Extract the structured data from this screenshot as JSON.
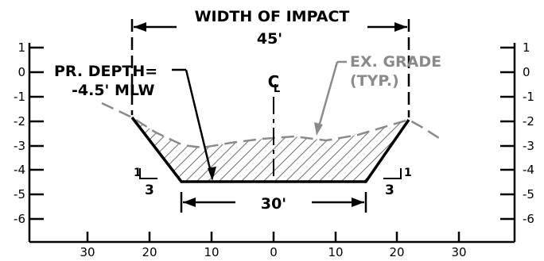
{
  "labels": {
    "width_of_impact": "WIDTH OF IMPACT",
    "width_value": "45'",
    "pr_depth_line1": "PR. DEPTH=",
    "pr_depth_line2": "-4.5' MLW",
    "centerline": "C",
    "centerline_sub": "L",
    "ex_grade_line1": "EX. GRADE",
    "ex_grade_line2": "(TYP.)",
    "bottom_width": "30'",
    "slope_left_v": "1",
    "slope_left_h": "3",
    "slope_right_h": "3",
    "slope_right_v": "1"
  },
  "axes": {
    "left_y_ticks": [
      "1",
      "0",
      "-1",
      "-2",
      "-3",
      "-4",
      "-5",
      "-6"
    ],
    "right_y_ticks": [
      "1",
      "0",
      "-1",
      "-2",
      "-3",
      "-4",
      "-5",
      "-6"
    ],
    "x_ticks": [
      "30",
      "20",
      "10",
      "0",
      "10",
      "20",
      "30"
    ]
  },
  "colors": {
    "line": "#000000",
    "grade": "#8a8a8a",
    "hatch": "#777777"
  }
}
